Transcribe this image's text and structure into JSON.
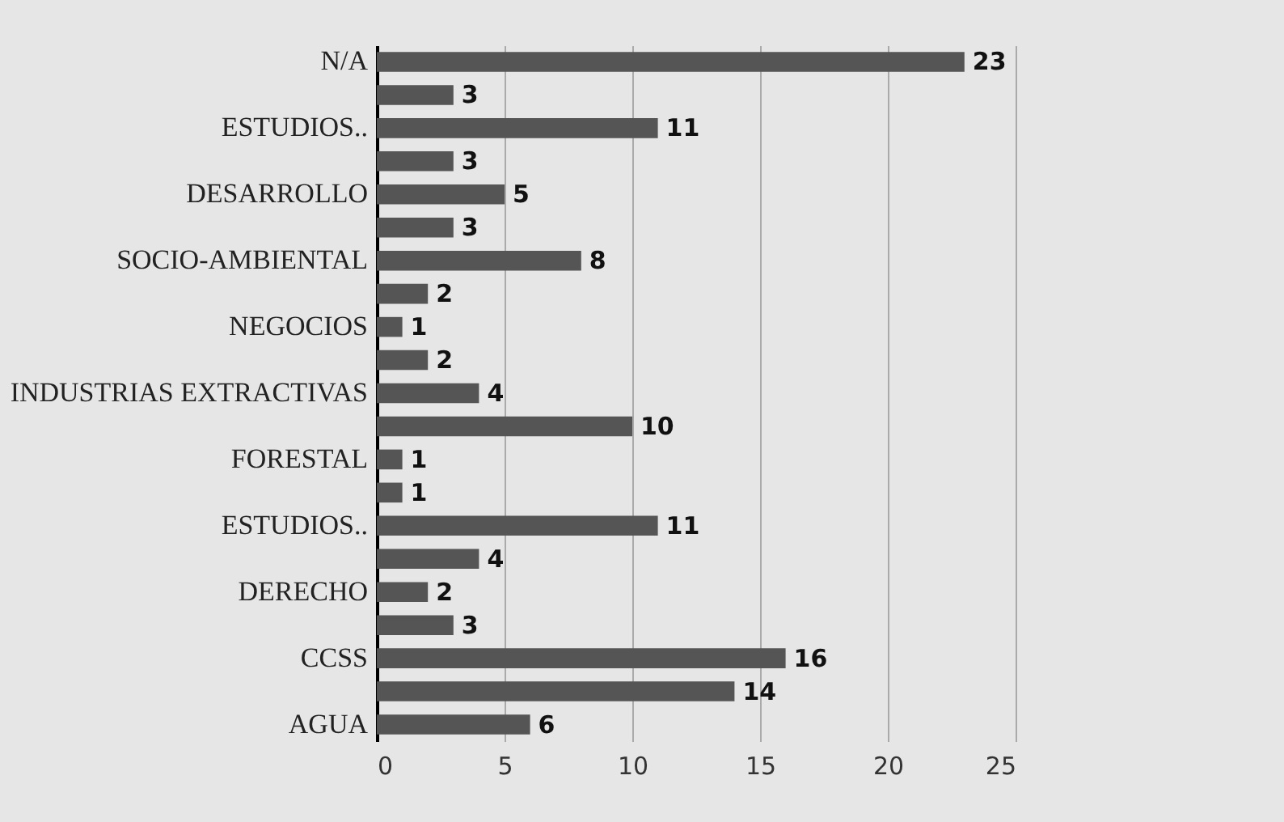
{
  "chart_data": {
    "type": "bar",
    "orientation": "horizontal",
    "categories": [
      "N/A",
      null,
      "ESTUDIOS..",
      null,
      "DESARROLLO",
      null,
      "SOCIO-AMBIENTAL",
      null,
      "NEGOCIOS",
      null,
      "INDUSTRIAS EXTRACTIVAS",
      null,
      "FORESTAL",
      null,
      "ESTUDIOS..",
      null,
      "DERECHO",
      null,
      "CCSS",
      null,
      "AGUA"
    ],
    "values": [
      23,
      3,
      11,
      3,
      5,
      3,
      8,
      2,
      1,
      2,
      4,
      10,
      1,
      1,
      11,
      4,
      2,
      3,
      16,
      14,
      6
    ],
    "color": "#555555",
    "xlim": [
      0,
      25
    ],
    "xticks": [
      0,
      5,
      10,
      15,
      20,
      25
    ],
    "grid": "x",
    "data_labels": true
  }
}
